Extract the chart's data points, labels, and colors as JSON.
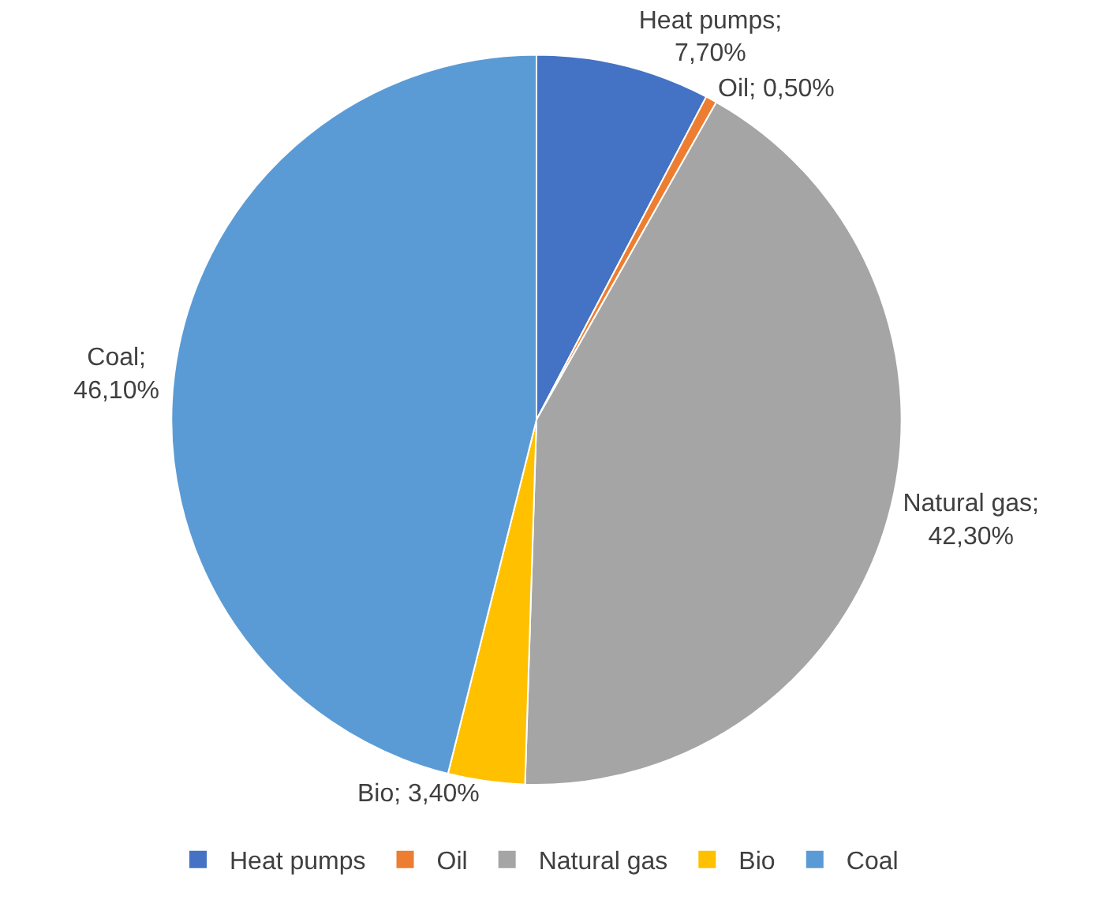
{
  "chart_data": {
    "type": "pie",
    "categories": [
      "Heat pumps",
      "Oil",
      "Natural gas",
      "Bio",
      "Coal"
    ],
    "values": [
      7.7,
      0.5,
      42.3,
      3.4,
      46.1
    ],
    "colors": [
      "#4472c4",
      "#ed7d31",
      "#a5a5a5",
      "#ffc000",
      "#5b9bd5"
    ],
    "value_labels": [
      "Heat pumps;\n7,70%",
      "Oil; 0,50%",
      "Natural gas;\n42,30%",
      "Bio; 3,40%",
      "Coal;\n46,10%"
    ],
    "legend": "bottom"
  }
}
